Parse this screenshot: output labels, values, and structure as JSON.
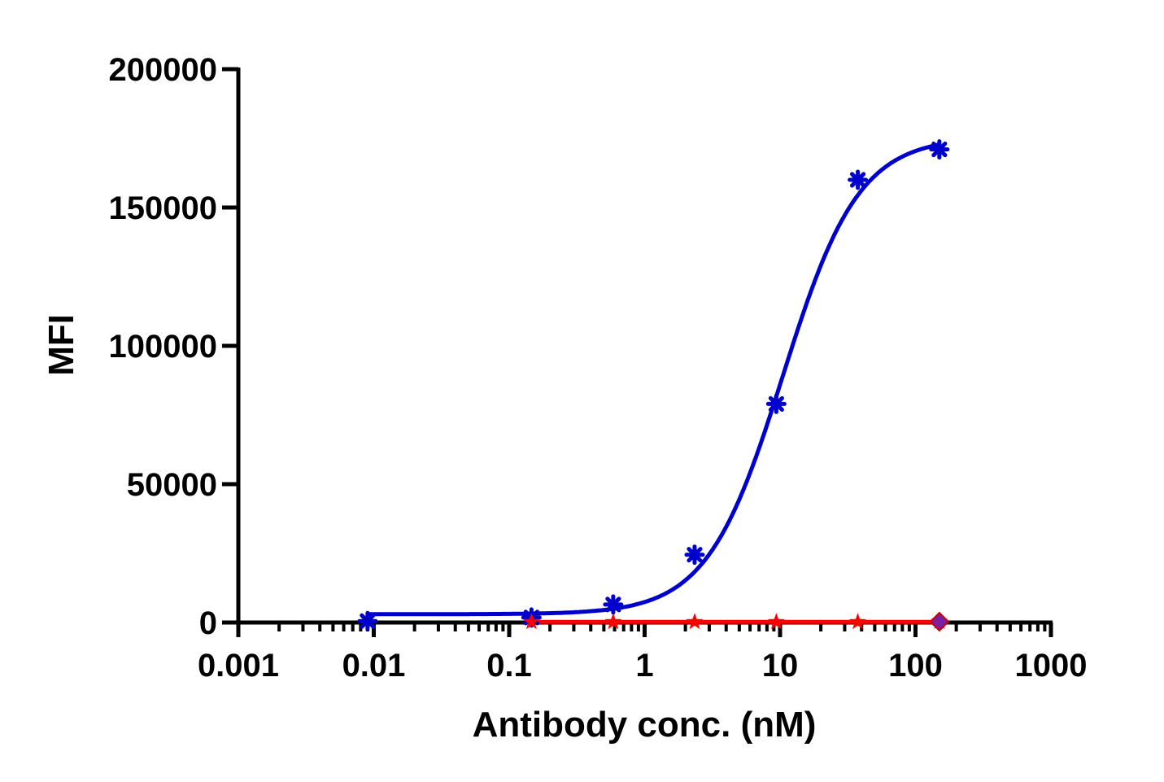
{
  "chart_data": {
    "type": "scatter",
    "xlabel": "Antibody conc. (nM)",
    "ylabel": "MFI",
    "xscale": "log",
    "xlim": [
      0.001,
      1000
    ],
    "ylim": [
      0,
      200000
    ],
    "x_ticks": [
      0.001,
      0.01,
      0.1,
      1,
      10,
      100,
      1000
    ],
    "x_tick_labels": [
      "0.001",
      "0.01",
      "0.1",
      "1",
      "10",
      "100",
      "1000"
    ],
    "y_ticks": [
      0,
      50000,
      100000,
      150000,
      200000
    ],
    "y_tick_labels": [
      "0",
      "50000",
      "100000",
      "150000",
      "200000"
    ],
    "grid": false,
    "legend": "none",
    "series": [
      {
        "color": "#0000cc",
        "marker": "asterisk",
        "x": [
          0.009,
          0.146,
          0.586,
          2.34,
          9.38,
          37.5,
          150
        ],
        "y": [
          500,
          1800,
          6500,
          24500,
          79000,
          160000,
          171000
        ],
        "fit_curve": {
          "bottom": 3000,
          "top": 175500,
          "ec50": 10.5,
          "hill": 1.55
        }
      },
      {
        "color": "#ff0000",
        "marker": "star",
        "x": [
          0.146,
          0.586,
          2.34,
          9.38,
          37.5,
          150
        ],
        "y": [
          200,
          200,
          200,
          200,
          200,
          300
        ],
        "fit_curve": "flat"
      },
      {
        "color": "#7a1fa2",
        "marker": "diamond",
        "x": [
          150
        ],
        "y": [
          300
        ]
      }
    ]
  }
}
